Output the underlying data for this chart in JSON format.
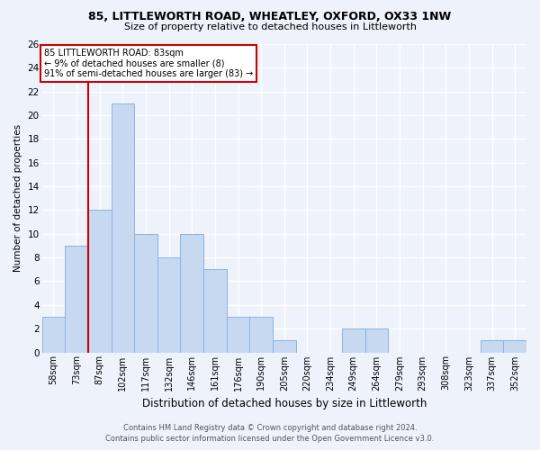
{
  "title1": "85, LITTLEWORTH ROAD, WHEATLEY, OXFORD, OX33 1NW",
  "title2": "Size of property relative to detached houses in Littleworth",
  "xlabel": "Distribution of detached houses by size in Littleworth",
  "ylabel": "Number of detached properties",
  "categories": [
    "58sqm",
    "73sqm",
    "87sqm",
    "102sqm",
    "117sqm",
    "132sqm",
    "146sqm",
    "161sqm",
    "176sqm",
    "190sqm",
    "205sqm",
    "220sqm",
    "234sqm",
    "249sqm",
    "264sqm",
    "279sqm",
    "293sqm",
    "308sqm",
    "323sqm",
    "337sqm",
    "352sqm"
  ],
  "values": [
    3,
    9,
    12,
    21,
    10,
    8,
    10,
    7,
    3,
    3,
    1,
    0,
    0,
    2,
    2,
    0,
    0,
    0,
    0,
    1,
    1
  ],
  "bar_color": "#c6d9f1",
  "bar_edge_color": "#8db3e2",
  "subject_bar_index": 2,
  "subject_line_color": "#cc0000",
  "ylim": [
    0,
    26
  ],
  "yticks": [
    0,
    2,
    4,
    6,
    8,
    10,
    12,
    14,
    16,
    18,
    20,
    22,
    24,
    26
  ],
  "annotation_title": "85 LITTLEWORTH ROAD: 83sqm",
  "annotation_line1": "← 9% of detached houses are smaller (8)",
  "annotation_line2": "91% of semi-detached houses are larger (83) →",
  "annotation_box_color": "#ffffff",
  "annotation_box_edge": "#cc0000",
  "footer1": "Contains HM Land Registry data © Crown copyright and database right 2024.",
  "footer2": "Contains public sector information licensed under the Open Government Licence v3.0.",
  "background_color": "#eef2fb",
  "grid_color": "#ffffff"
}
